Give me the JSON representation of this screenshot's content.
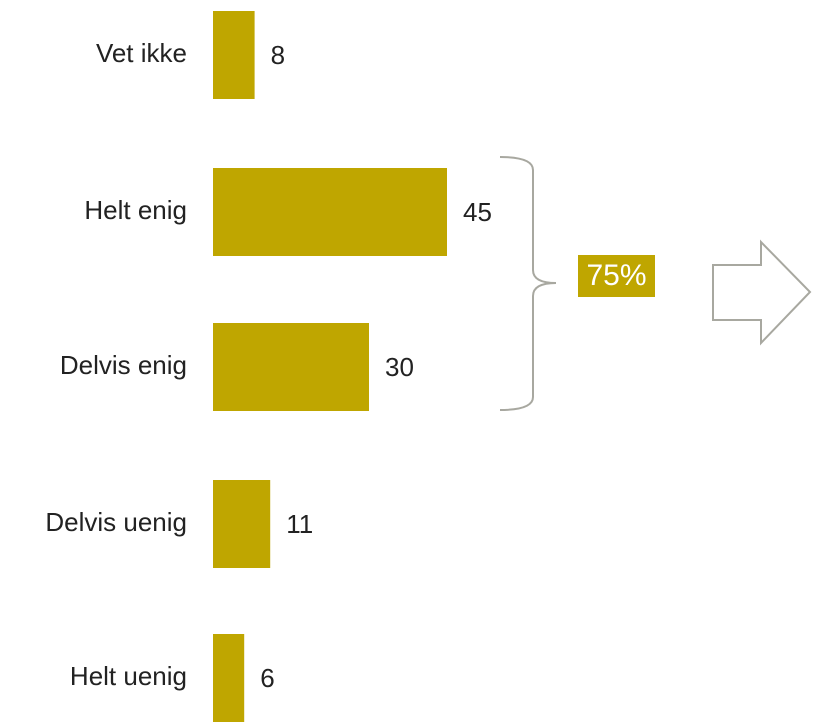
{
  "chart_data": {
    "type": "barh",
    "categories": [
      "Vet ikke",
      "Helt enig",
      "Delvis enig",
      "Delvis uenig",
      "Helt uenig"
    ],
    "values": [
      8,
      45,
      30,
      11,
      6
    ],
    "color": "#bfa600",
    "annotation": "75%"
  }
}
